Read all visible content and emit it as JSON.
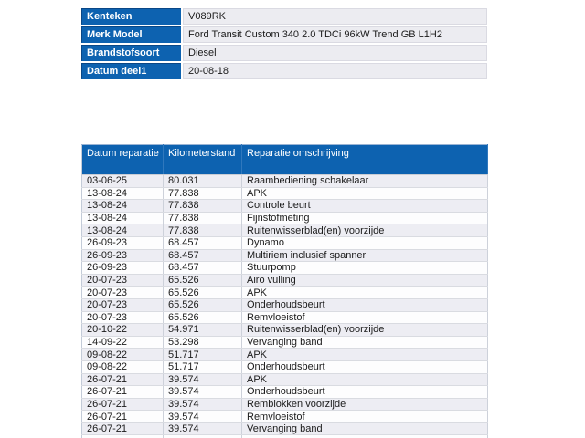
{
  "colors": {
    "header_blue": "#0d62b0",
    "row_alternate": "#ededf3",
    "row_plain": "#fdfdfe",
    "label_text": "#ffffff",
    "body_text": "#1b1b1b"
  },
  "vehicle_info": {
    "rows": [
      {
        "label": "Kenteken",
        "value": "V089RK"
      },
      {
        "label": "Merk Model",
        "value": "Ford Transit Custom 340 2.0 TDCi 96kW Trend GB L1H2"
      },
      {
        "label": "Brandstofsoort",
        "value": "Diesel"
      },
      {
        "label": "Datum deel1",
        "value": "20-08-18"
      }
    ]
  },
  "repairs": {
    "columns": [
      "Datum reparatie",
      "Kilometerstand",
      "Reparatie omschrijving"
    ],
    "rows": [
      [
        "03-06-25",
        "80.031",
        "Raambediening schakelaar"
      ],
      [
        "13-08-24",
        "77.838",
        "APK"
      ],
      [
        "13-08-24",
        "77.838",
        "Controle beurt"
      ],
      [
        "13-08-24",
        "77.838",
        "Fijnstofmeting"
      ],
      [
        "13-08-24",
        "77.838",
        "Ruitenwisserblad(en) voorzijde"
      ],
      [
        "26-09-23",
        "68.457",
        "Dynamo"
      ],
      [
        "26-09-23",
        "68.457",
        "Multiriem inclusief spanner"
      ],
      [
        "26-09-23",
        "68.457",
        "Stuurpomp"
      ],
      [
        "20-07-23",
        "65.526",
        "Airo vulling"
      ],
      [
        "20-07-23",
        "65.526",
        "APK"
      ],
      [
        "20-07-23",
        "65.526",
        "Onderhoudsbeurt"
      ],
      [
        "20-07-23",
        "65.526",
        "Remvloeistof"
      ],
      [
        "20-10-22",
        "54.971",
        "Ruitenwisserblad(en) voorzijde"
      ],
      [
        "14-09-22",
        "53.298",
        "Vervanging band"
      ],
      [
        "09-08-22",
        "51.717",
        "APK"
      ],
      [
        "09-08-22",
        "51.717",
        "Onderhoudsbeurt"
      ],
      [
        "26-07-21",
        "39.574",
        "APK"
      ],
      [
        "26-07-21",
        "39.574",
        "Onderhoudsbeurt"
      ],
      [
        "26-07-21",
        "39.574",
        "Remblokken voorzijde"
      ],
      [
        "26-07-21",
        "39.574",
        "Remvloeistof"
      ],
      [
        "26-07-21",
        "39.574",
        "Vervanging band"
      ]
    ]
  }
}
